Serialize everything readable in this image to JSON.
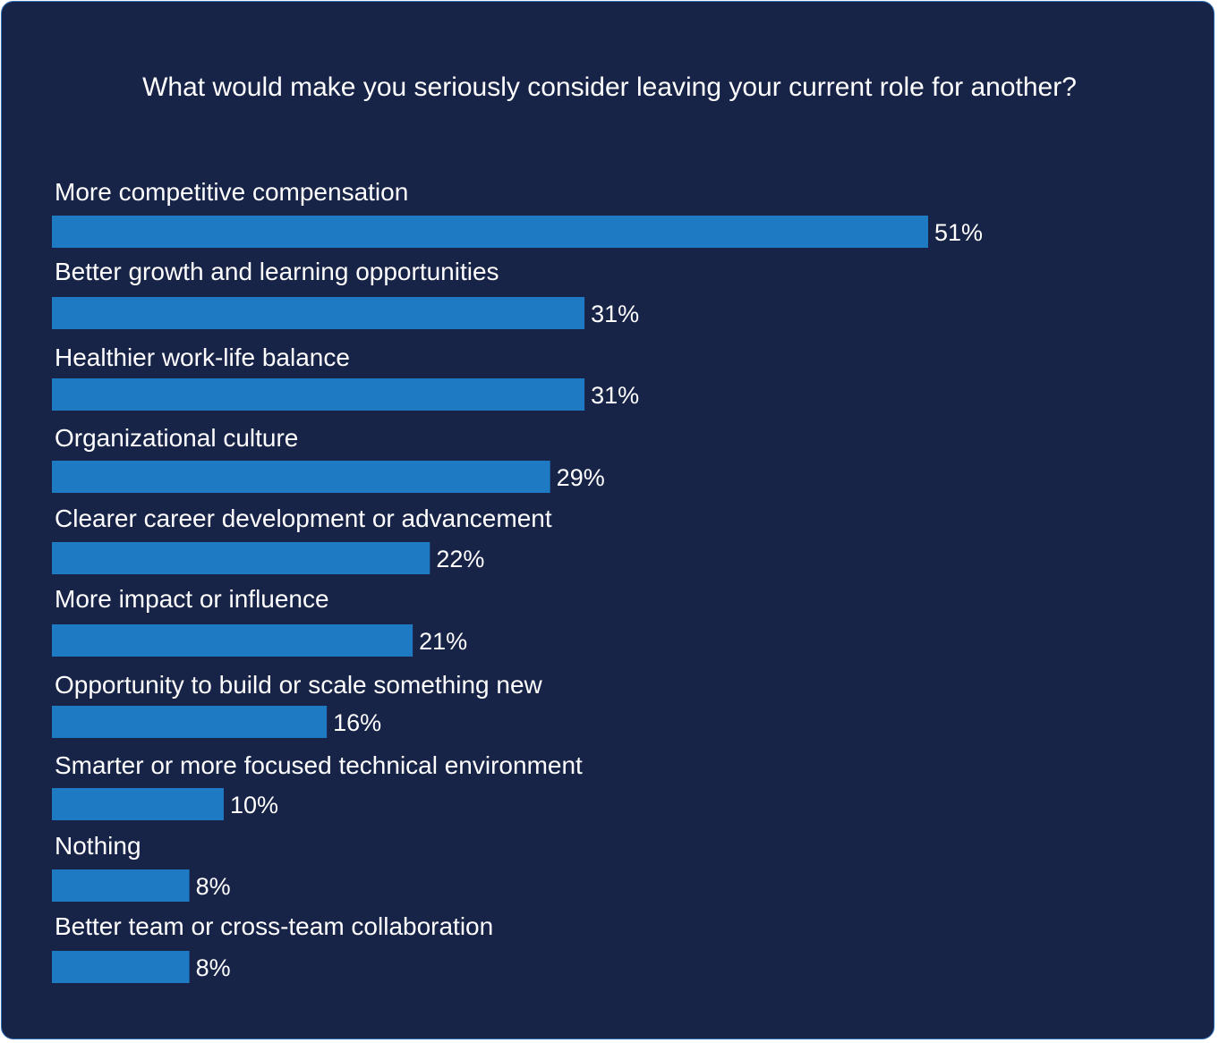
{
  "colors": {
    "background": "#172347",
    "border": "#2f6fb8",
    "bar": "#1f7ac4",
    "text": "#ffffff"
  },
  "chart_data": {
    "type": "bar",
    "orientation": "horizontal",
    "title": "What would make you seriously consider leaving your current role for another?",
    "xlabel": "",
    "ylabel": "",
    "xlim": [
      0,
      51
    ],
    "grid": false,
    "legend": "none",
    "value_suffix": "%",
    "categories": [
      "More competitive compensation",
      "Better growth and learning opportunities",
      "Healthier work-life balance",
      "Organizational culture",
      "Clearer career development or advancement",
      "More impact or influence",
      "Opportunity to build or scale something new",
      "Smarter or more focused technical environment",
      "Nothing",
      "Better team or cross-team collaboration"
    ],
    "values": [
      51,
      31,
      31,
      29,
      22,
      21,
      16,
      10,
      8,
      8
    ]
  }
}
